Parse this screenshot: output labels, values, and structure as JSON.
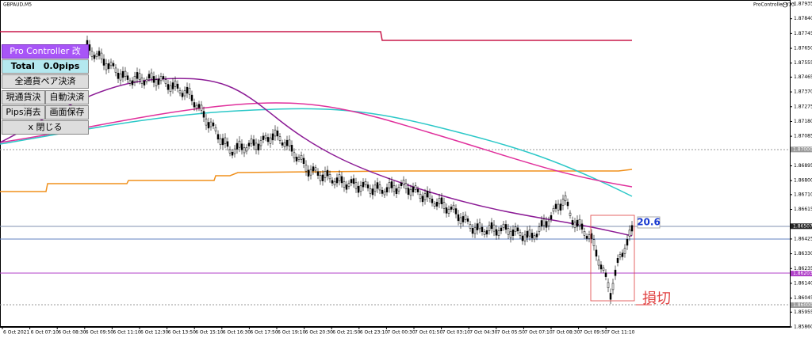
{
  "header": {
    "symbol": "GBPAUD,M5",
    "indicator": "ProController-V33"
  },
  "panel": {
    "title": "Pro Controller 改",
    "total": "Total　0.0pips",
    "buttons": [
      "全通貨ペア決済",
      "現通貨決済",
      "自動決済",
      "Pips消去",
      "画面保存",
      "x 閉じる"
    ]
  },
  "price_axis": {
    "labels": [
      "1.87935",
      "1.87840",
      "1.87745",
      "1.87650",
      "1.87555",
      "1.87465",
      "1.87370",
      "1.87275",
      "1.87180",
      "1.87085",
      "1.86895",
      "1.86800",
      "1.86710",
      "1.86615",
      "1.86425",
      "1.86330",
      "1.86235",
      "1.86140",
      "1.86045",
      "1.85955",
      "1.85860"
    ],
    "boxes": [
      "1.87000",
      "1.86507",
      "1.86203",
      "1.86000"
    ]
  },
  "time_axis": {
    "labels": [
      "6 Oct 2021",
      "6 Oct 07:10",
      "6 Oct 08:30",
      "6 Oct 09:50",
      "6 Oct 11:10",
      "6 Oct 12:30",
      "6 Oct 13:50",
      "6 Oct 15:10",
      "6 Oct 16:30",
      "6 Oct 17:50",
      "6 Oct 19:10",
      "6 Oct 20:30",
      "6 Oct 21:50",
      "6 Oct 23:10",
      "7 Oct 00:30",
      "7 Oct 01:50",
      "7 Oct 03:10",
      "7 Oct 04:30",
      "7 Oct 05:50",
      "7 Oct 07:10",
      "7 Oct 08:30",
      "7 Oct 09:50",
      "7 Oct 11:10"
    ]
  },
  "annotations": {
    "pips": "20.6",
    "note": "損切"
  }
}
